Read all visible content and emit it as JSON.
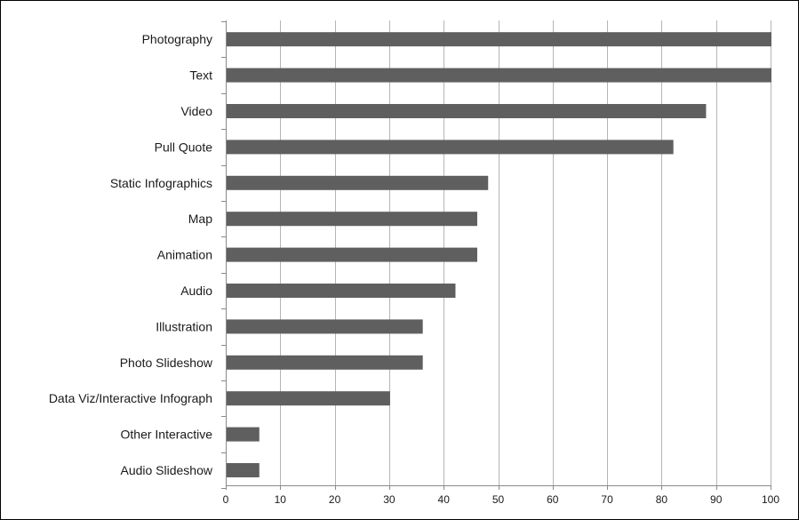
{
  "chart_data": {
    "type": "bar",
    "orientation": "horizontal",
    "categories": [
      "Photography",
      "Text",
      "Video",
      "Pull Quote",
      "Static Infographics",
      "Map",
      "Animation",
      "Audio",
      "Illustration",
      "Photo Slideshow",
      "Data Viz/Interactive Infograph",
      "Other Interactive",
      "Audio Slideshow"
    ],
    "values": [
      100,
      100,
      88,
      82,
      48,
      46,
      46,
      42,
      36,
      36,
      30,
      6,
      6
    ],
    "xlim": [
      0,
      100
    ],
    "x_ticks": [
      "0",
      "10",
      "20",
      "30",
      "40",
      "50",
      "60",
      "70",
      "80",
      "90",
      "100"
    ],
    "grid": true,
    "legend": "none",
    "bar_color": "#5f5f5f",
    "grid_color": "#b5b5b5"
  }
}
